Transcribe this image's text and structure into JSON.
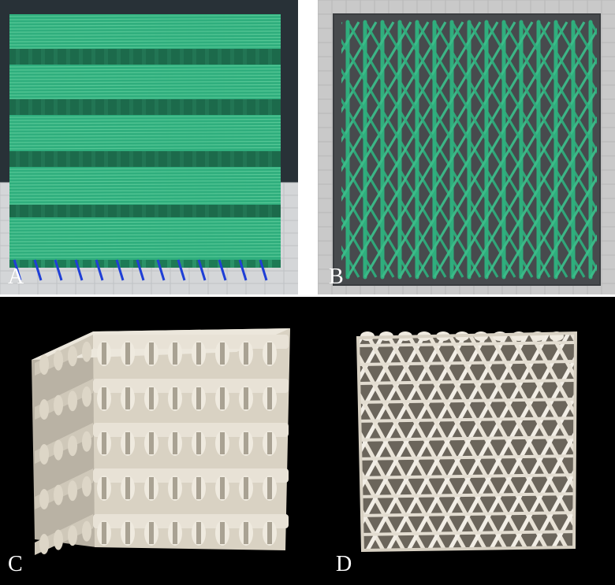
{
  "panels": {
    "a": {
      "label": "A"
    },
    "b": {
      "label": "B"
    },
    "c": {
      "label": "C"
    },
    "d": {
      "label": "D"
    }
  },
  "colors": {
    "filament_green": "#2fae7d",
    "filament_shadow": "#1d7a55",
    "support_blue": "#1f3fd6",
    "viewport_dark": "#283137",
    "build_plate": "#c9c9c9",
    "printed_white": "#e8e2d6",
    "photo_background": "#000000"
  }
}
